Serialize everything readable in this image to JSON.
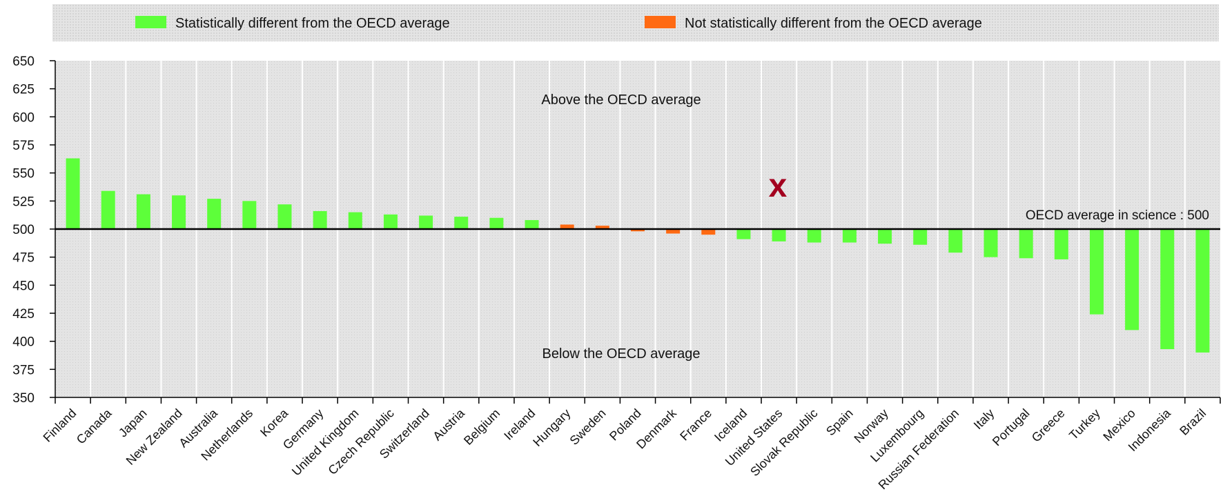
{
  "legend": {
    "items": [
      {
        "label": "Statistically different from the OECD average",
        "color": "#5dff3a"
      },
      {
        "label": "Not statistically different from the OECD average",
        "color": "#ff6a13"
      }
    ]
  },
  "chart_data": {
    "type": "bar",
    "title": "",
    "xlabel": "",
    "ylabel": "",
    "ylim": [
      350,
      650
    ],
    "yticks": [
      350,
      375,
      400,
      425,
      450,
      475,
      500,
      525,
      550,
      575,
      600,
      625,
      650
    ],
    "baseline": 500,
    "grid": true,
    "legend_position": "top",
    "categories": [
      "Finland",
      "Canada",
      "Japan",
      "New Zealand",
      "Australia",
      "Netherlands",
      "Korea",
      "Germany",
      "United Kingdom",
      "Czech Republic",
      "Switzerland",
      "Austria",
      "Belgium",
      "Ireland",
      "Hungary",
      "Sweden",
      "Poland",
      "Denmark",
      "France",
      "Iceland",
      "United States",
      "Slovak Republic",
      "Spain",
      "Norway",
      "Luxembourg",
      "Russian Federation",
      "Italy",
      "Portugal",
      "Greece",
      "Turkey",
      "Mexico",
      "Indonesia",
      "Brazil"
    ],
    "values": [
      563,
      534,
      531,
      530,
      527,
      525,
      522,
      516,
      515,
      513,
      512,
      511,
      510,
      508,
      504,
      503,
      498,
      496,
      495,
      491,
      489,
      488,
      488,
      487,
      486,
      479,
      475,
      474,
      473,
      424,
      410,
      393,
      390
    ],
    "significance": [
      "different",
      "different",
      "different",
      "different",
      "different",
      "different",
      "different",
      "different",
      "different",
      "different",
      "different",
      "different",
      "different",
      "different",
      "not_different",
      "not_different",
      "not_different",
      "not_different",
      "not_different",
      "different",
      "different",
      "different",
      "different",
      "different",
      "different",
      "different",
      "different",
      "different",
      "different",
      "different",
      "different",
      "different",
      "different"
    ],
    "colors": {
      "different": "#5dff3a",
      "not_different": "#ff6a13",
      "marker": "#a3001f"
    },
    "annotations": {
      "above": "Above the OECD average",
      "below": "Below the OECD average",
      "average": "OECD average in science : 500",
      "marker": "x"
    }
  }
}
